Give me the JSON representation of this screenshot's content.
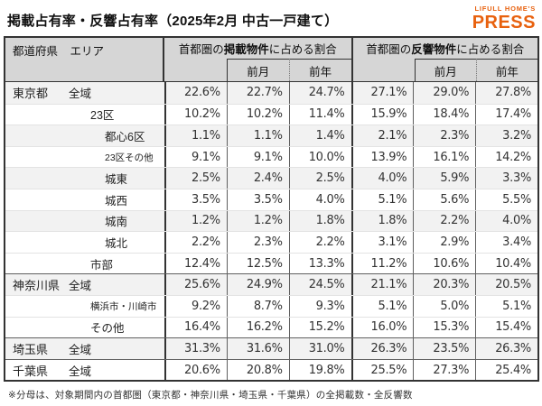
{
  "title": "掲載占有率・反響占有率（2025年2月 中古一戸建て）",
  "logo": {
    "top": "LIFULL HOME'S",
    "bottom": "PRESS",
    "color": "#e8610e"
  },
  "table": {
    "corner": {
      "pref": "都道府県",
      "area": "エリア"
    },
    "groups": [
      {
        "prefix": "首都圏の",
        "bold": "掲載物件",
        "suffix": "に占める割合",
        "sub": [
          "",
          "前月",
          "前年"
        ]
      },
      {
        "prefix": "首都圏の",
        "bold": "反響物件",
        "suffix": "に占める割合",
        "sub": [
          "",
          "前月",
          "前年"
        ]
      }
    ],
    "rows": [
      {
        "pref": "東京都",
        "area": "全域",
        "level": 0,
        "small": false,
        "shade": true,
        "group_start": false,
        "values": [
          "22.6%",
          "22.7%",
          "24.7%",
          "27.1%",
          "29.0%",
          "27.8%"
        ]
      },
      {
        "pref": "",
        "area": "23区",
        "level": 1,
        "small": false,
        "shade": false,
        "group_start": false,
        "values": [
          "10.2%",
          "10.2%",
          "11.4%",
          "15.9%",
          "18.4%",
          "17.4%"
        ]
      },
      {
        "pref": "",
        "area": "都心6区",
        "level": 2,
        "small": false,
        "shade": true,
        "group_start": false,
        "values": [
          "1.1%",
          "1.1%",
          "1.4%",
          "2.1%",
          "2.3%",
          "3.2%"
        ]
      },
      {
        "pref": "",
        "area": "23区その他",
        "level": 2,
        "small": true,
        "shade": false,
        "group_start": false,
        "values": [
          "9.1%",
          "9.1%",
          "10.0%",
          "13.9%",
          "16.1%",
          "14.2%"
        ]
      },
      {
        "pref": "",
        "area": "城東",
        "level": 2,
        "small": false,
        "shade": true,
        "group_start": false,
        "values": [
          "2.5%",
          "2.4%",
          "2.5%",
          "4.0%",
          "5.9%",
          "3.3%"
        ]
      },
      {
        "pref": "",
        "area": "城西",
        "level": 2,
        "small": false,
        "shade": false,
        "group_start": false,
        "values": [
          "3.5%",
          "3.5%",
          "4.0%",
          "5.1%",
          "5.6%",
          "5.5%"
        ]
      },
      {
        "pref": "",
        "area": "城南",
        "level": 2,
        "small": false,
        "shade": true,
        "group_start": false,
        "values": [
          "1.2%",
          "1.2%",
          "1.8%",
          "1.8%",
          "2.2%",
          "4.0%"
        ]
      },
      {
        "pref": "",
        "area": "城北",
        "level": 2,
        "small": false,
        "shade": false,
        "group_start": false,
        "values": [
          "2.2%",
          "2.3%",
          "2.2%",
          "3.1%",
          "2.9%",
          "3.4%"
        ]
      },
      {
        "pref": "",
        "area": "市部",
        "level": 1,
        "small": false,
        "shade": false,
        "group_start": false,
        "values": [
          "12.4%",
          "12.5%",
          "13.3%",
          "11.2%",
          "10.6%",
          "10.4%"
        ]
      },
      {
        "pref": "神奈川県",
        "area": "全域",
        "level": 0,
        "small": false,
        "shade": true,
        "group_start": true,
        "values": [
          "25.6%",
          "24.9%",
          "24.5%",
          "21.1%",
          "20.3%",
          "20.5%"
        ]
      },
      {
        "pref": "",
        "area": "横浜市・川崎市",
        "level": 1,
        "small": true,
        "shade": false,
        "group_start": false,
        "values": [
          "9.2%",
          "8.7%",
          "9.3%",
          "5.1%",
          "5.0%",
          "5.1%"
        ]
      },
      {
        "pref": "",
        "area": "その他",
        "level": 1,
        "small": false,
        "shade": false,
        "group_start": false,
        "values": [
          "16.4%",
          "16.2%",
          "15.2%",
          "16.0%",
          "15.3%",
          "15.4%"
        ]
      },
      {
        "pref": "埼玉県",
        "area": "全域",
        "level": 0,
        "small": false,
        "shade": true,
        "group_start": true,
        "values": [
          "31.3%",
          "31.6%",
          "31.0%",
          "26.3%",
          "23.5%",
          "26.3%"
        ]
      },
      {
        "pref": "千葉県",
        "area": "全域",
        "level": 0,
        "small": false,
        "shade": false,
        "group_start": true,
        "values": [
          "20.6%",
          "20.8%",
          "19.8%",
          "25.5%",
          "27.3%",
          "25.4%"
        ]
      }
    ]
  },
  "footnote": "※分母は、対象期間内の首都圏（東京都・神奈川県・埼玉県・千葉県）の全掲載数・全反響数",
  "colors": {
    "accent_orange": "#e8610e",
    "header_bg": "#d6d6d6",
    "row_shade": "#f2f2f2",
    "border_dark": "#333333"
  }
}
